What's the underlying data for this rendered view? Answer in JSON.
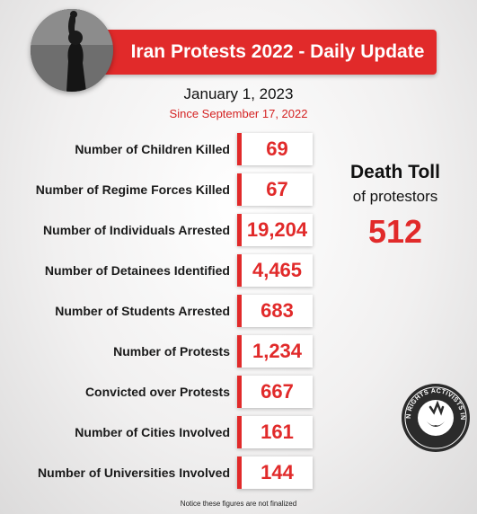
{
  "header": {
    "title": "Iran Protests 2022 - Daily Update",
    "date": "January 1, 2023",
    "since": "Since September 17, 2022"
  },
  "stats": [
    {
      "label": "Number of Children Killed",
      "value": "69"
    },
    {
      "label": "Number of Regime Forces Killed",
      "value": "67"
    },
    {
      "label": "Number of Individuals Arrested",
      "value": "19,204"
    },
    {
      "label": "Number of Detainees Identified",
      "value": "4,465"
    },
    {
      "label": "Number of Students Arrested",
      "value": "683"
    },
    {
      "label": "Number of Protests",
      "value": "1,234"
    },
    {
      "label": "Convicted over Protests",
      "value": "667"
    },
    {
      "label": "Number of Cities Involved",
      "value": "161"
    },
    {
      "label": "Number of Universities Involved",
      "value": "144"
    }
  ],
  "death_toll": {
    "title": "Death Toll",
    "subtitle": "of protestors",
    "value": "512"
  },
  "logo": {
    "text": "HUMAN RIGHTS ACTIVISTS IN IRAN"
  },
  "footnote": "Notice these figures are not finalized",
  "colors": {
    "accent": "#e12a2a",
    "text": "#1a1a1a"
  }
}
